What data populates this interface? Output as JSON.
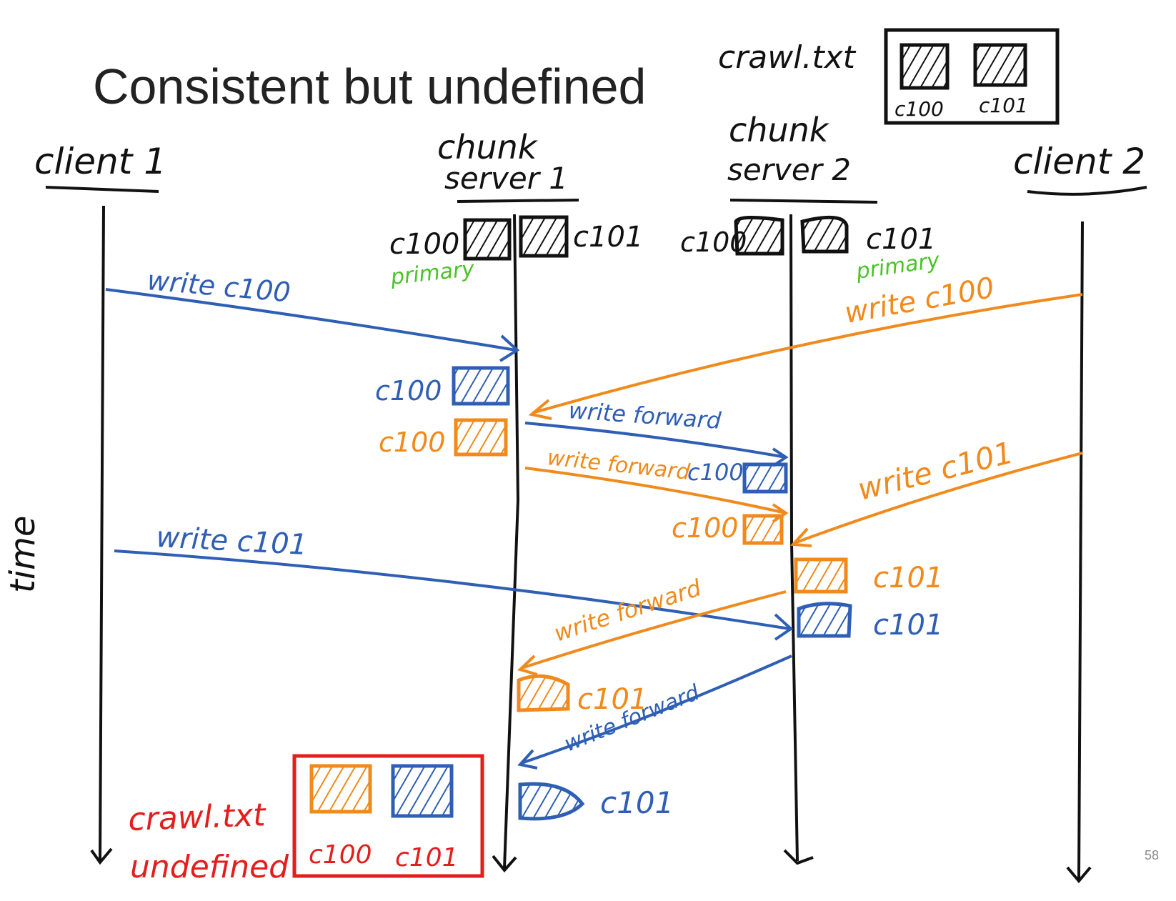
{
  "slide": {
    "title": "Consistent but undefined",
    "page_number": "58"
  },
  "colors": {
    "ink": "#111111",
    "client1": "#2f5fb5",
    "client2": "#f08a1c",
    "primary_note": "#4cc22a",
    "undefined": "#e41d1d",
    "title": "#222222",
    "page_number": "#8a8a8a"
  },
  "file": {
    "name": "crawl.txt",
    "chunks": [
      "c100",
      "c101"
    ]
  },
  "timelines": {
    "client1": "client 1",
    "chunk_server1": [
      "chunk",
      "server 1"
    ],
    "chunk_server2": [
      "chunk",
      "server 2"
    ],
    "client2": "client 2",
    "time_axis": "time"
  },
  "server1": {
    "chunk_left": "c100",
    "chunk_right": "c101",
    "primary_note": "primary"
  },
  "server2": {
    "chunk_left": "c100",
    "chunk_right": "c101",
    "primary_note": "primary"
  },
  "messages": {
    "c1_write_c100": "write c100",
    "c2_write_c100": "write c100",
    "fwd1": "write forward",
    "fwd2": "write forward",
    "c2_write_c101": "write c101",
    "c1_write_c101": "write c101",
    "fwd3": "write forward",
    "fwd4": "write forward"
  },
  "stored": {
    "s1_c100_blue": "c100",
    "s1_c100_orange": "c100",
    "s2_c100_blue": "c100",
    "s2_c100_orange": "c100",
    "s2_c101_orange": "c101",
    "s2_c101_blue": "c101",
    "s1_c101_orange": "c101",
    "s1_c101_blue": "c101"
  },
  "result": {
    "file_name": "crawl.txt",
    "status": "undefined",
    "chunks": [
      "c100",
      "c101"
    ]
  }
}
